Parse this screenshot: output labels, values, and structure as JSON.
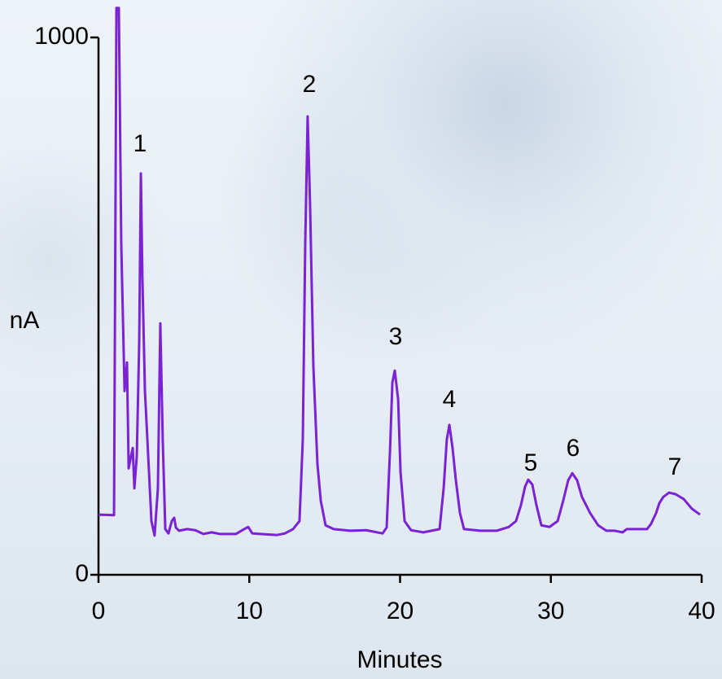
{
  "chart_data": {
    "type": "line",
    "x_label": "Minutes",
    "y_label": "nA",
    "xlim": [
      0,
      40
    ],
    "xticks": [
      0,
      10,
      20,
      30,
      40
    ],
    "ylim": [
      0,
      1000
    ],
    "yticks": [
      0,
      1000
    ],
    "annotations": [
      "1",
      "2",
      "3",
      "4",
      "5",
      "6",
      "7"
    ],
    "series": [
      {
        "color": "#7a22d4",
        "x": [
          0,
          1.03,
          1.19,
          1.35,
          1.51,
          1.73,
          1.89,
          2.0,
          2.16,
          2.27,
          2.38,
          2.54,
          2.7,
          2.81,
          2.91,
          3.08,
          3.35,
          3.51,
          3.72,
          3.94,
          4.1,
          4.26,
          4.43,
          4.64,
          4.86,
          5.02,
          5.13,
          5.34,
          5.88,
          6.42,
          6.96,
          7.5,
          8.04,
          9.12,
          9.66,
          9.93,
          10.2,
          10.74,
          11.82,
          12.36,
          12.9,
          13.33,
          13.55,
          13.71,
          13.87,
          14.03,
          14.25,
          14.52,
          14.74,
          15.06,
          15.6,
          16.68,
          17.76,
          18.84,
          19.11,
          19.33,
          19.49,
          19.65,
          19.87,
          20.03,
          20.3,
          20.73,
          21.54,
          22.62,
          22.89,
          23.1,
          23.27,
          23.48,
          23.7,
          23.97,
          24.24,
          25.32,
          26.4,
          27.21,
          27.69,
          28.02,
          28.29,
          28.5,
          28.77,
          29.04,
          29.37,
          29.91,
          30.45,
          30.82,
          31.15,
          31.42,
          31.74,
          32.06,
          32.6,
          33.14,
          33.68,
          34.22,
          34.76,
          35.03,
          36.38,
          36.65,
          36.98,
          37.19,
          37.46,
          37.84,
          38.27,
          38.81,
          39.35,
          39.89
        ],
        "values": [
          112,
          111,
          1055,
          1055,
          615,
          342,
          395,
          198,
          221,
          236,
          161,
          221,
          433,
          747,
          555,
          342,
          191,
          100,
          73,
          161,
          468,
          252,
          85,
          77,
          100,
          106,
          88,
          82,
          85,
          83,
          76,
          79,
          76,
          76,
          85,
          89,
          77,
          76,
          74,
          77,
          85,
          100,
          252,
          615,
          853,
          691,
          388,
          206,
          138,
          92,
          85,
          82,
          83,
          77,
          88,
          229,
          358,
          380,
          327,
          191,
          100,
          83,
          79,
          85,
          161,
          252,
          279,
          236,
          176,
          115,
          85,
          82,
          82,
          89,
          100,
          130,
          164,
          177,
          168,
          130,
          92,
          89,
          100,
          138,
          176,
          189,
          176,
          145,
          115,
          92,
          82,
          82,
          79,
          85,
          85,
          95,
          115,
          133,
          145,
          153,
          150,
          141,
          123,
          112
        ]
      }
    ]
  }
}
